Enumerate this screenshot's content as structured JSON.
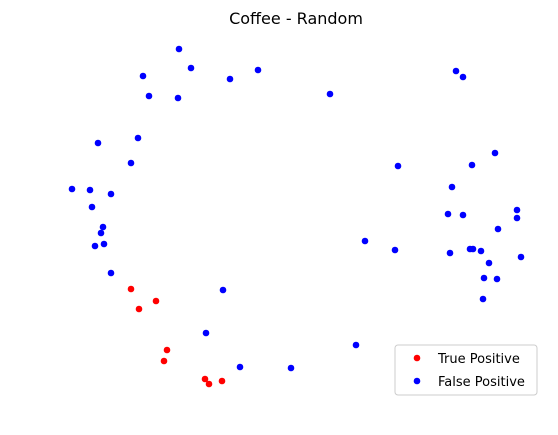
{
  "chart_data": {
    "type": "scatter",
    "title": "Coffee - Random",
    "xlabel": "",
    "ylabel": "",
    "axes_visible": false,
    "grid": false,
    "legend_position": "lower-right",
    "series": [
      {
        "name": "True Positive",
        "color": "#ff0000",
        "points": [
          [
            131,
            289
          ],
          [
            156,
            301
          ],
          [
            139,
            309
          ],
          [
            167,
            350
          ],
          [
            164,
            361
          ],
          [
            205,
            379
          ],
          [
            209,
            384
          ],
          [
            222,
            381
          ]
        ]
      },
      {
        "name": "False Positive",
        "color": "#0000ff",
        "points": [
          [
            179,
            49
          ],
          [
            191,
            68
          ],
          [
            143,
            76
          ],
          [
            258,
            70
          ],
          [
            230,
            79
          ],
          [
            149,
            96
          ],
          [
            178,
            98
          ],
          [
            330,
            94
          ],
          [
            456,
            71
          ],
          [
            463,
            77
          ],
          [
            138,
            138
          ],
          [
            98,
            143
          ],
          [
            131,
            163
          ],
          [
            72,
            189
          ],
          [
            90,
            190
          ],
          [
            111,
            194
          ],
          [
            92,
            207
          ],
          [
            103,
            227
          ],
          [
            101,
            233
          ],
          [
            104,
            244
          ],
          [
            95,
            246
          ],
          [
            111,
            273
          ],
          [
            223,
            290
          ],
          [
            206,
            333
          ],
          [
            240,
            367
          ],
          [
            291,
            368
          ],
          [
            356,
            345
          ],
          [
            365,
            241
          ],
          [
            395,
            250
          ],
          [
            398,
            166
          ],
          [
            495,
            153
          ],
          [
            472,
            165
          ],
          [
            452,
            187
          ],
          [
            448,
            214
          ],
          [
            463,
            215
          ],
          [
            517,
            210
          ],
          [
            517,
            218
          ],
          [
            498,
            229
          ],
          [
            470,
            249
          ],
          [
            473,
            249
          ],
          [
            450,
            253
          ],
          [
            481,
            251
          ],
          [
            489,
            263
          ],
          [
            521,
            257
          ],
          [
            484,
            278
          ],
          [
            497,
            279
          ],
          [
            483,
            299
          ]
        ]
      }
    ]
  }
}
